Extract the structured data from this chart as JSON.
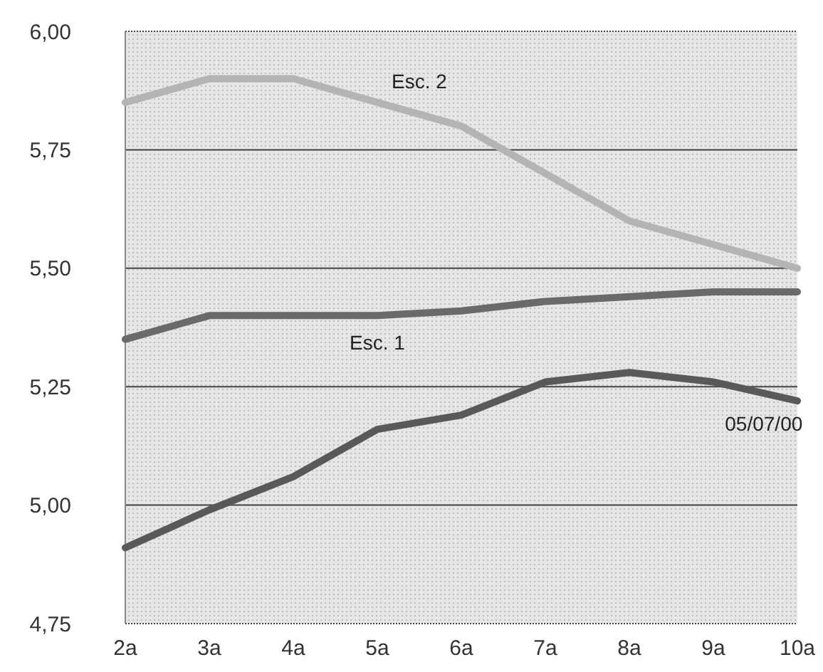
{
  "chart_data": {
    "type": "line",
    "categories": [
      "2a",
      "3a",
      "4a",
      "5a",
      "6a",
      "7a",
      "8a",
      "9a",
      "10a"
    ],
    "series": [
      {
        "name": "Esc. 2",
        "color": "#b4b4b4",
        "values": [
          5.85,
          5.9,
          5.9,
          5.85,
          5.8,
          5.7,
          5.6,
          5.55,
          5.5
        ]
      },
      {
        "name": "Esc. 1",
        "color": "#6a6a6a",
        "values": [
          5.35,
          5.4,
          5.4,
          5.4,
          5.41,
          5.43,
          5.44,
          5.45,
          5.45
        ]
      },
      {
        "name": "05/07/00",
        "color": "#595959",
        "values": [
          4.91,
          4.99,
          5.06,
          5.16,
          5.19,
          5.26,
          5.28,
          5.26,
          5.22
        ]
      }
    ],
    "ylim": [
      4.75,
      6
    ],
    "yticks": [
      {
        "value": 4.75,
        "label": "4,75"
      },
      {
        "value": 5,
        "label": "5,00"
      },
      {
        "value": 5.25,
        "label": "5,25"
      },
      {
        "value": 5.5,
        "label": "5,50"
      },
      {
        "value": 5.75,
        "label": "5,75"
      },
      {
        "value": 6,
        "label": "6,00"
      }
    ],
    "grid": "y",
    "legend": false,
    "marker": "none",
    "line_style": "solid"
  }
}
